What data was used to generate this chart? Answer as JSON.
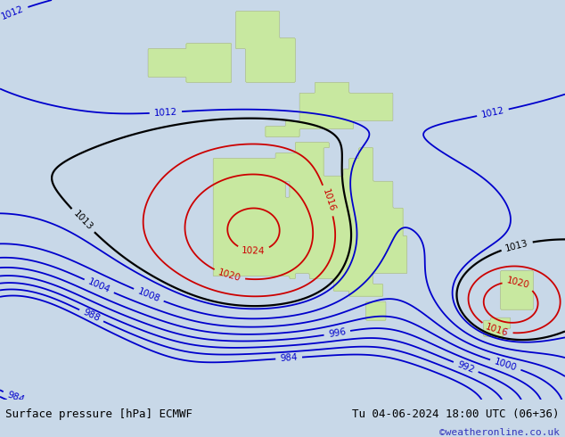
{
  "title_left": "Surface pressure [hPa] ECMWF",
  "title_right": "Tu 04-06-2024 18:00 UTC (06+36)",
  "title_right2": "©weatheronline.co.uk",
  "bg_color": "#c8d8e8",
  "land_color": "#c8e8a0",
  "fig_width": 6.34,
  "fig_height": 4.9,
  "dpi": 100,
  "contour_levels_black": [
    1013
  ],
  "contour_levels_red": [
    1016,
    1020,
    1024
  ],
  "contour_levels_blue": [
    984,
    988,
    992,
    996,
    1000,
    1004,
    1008,
    1012
  ],
  "contour_color_black": "#000000",
  "contour_color_red": "#cc0000",
  "contour_color_blue": "#0000cc",
  "label_fontsize": 7.5,
  "bottom_bar_color": "#d4dde6",
  "bottom_text_color": "#000000",
  "watermark_color": "#3333bb",
  "lon_min": 70,
  "lon_max": 185,
  "lat_min": -58,
  "lat_max": 15
}
